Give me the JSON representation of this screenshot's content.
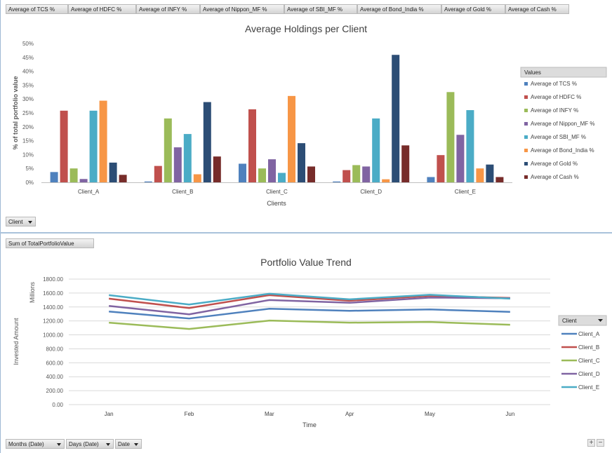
{
  "top_field_buttons": [
    "Average of TCS %",
    "Average of HDFC %",
    "Average of INFY %",
    "Average of Nippon_MF  %",
    "Average of SBI_MF %",
    "Average of Bond_India  %",
    "Average of Gold %",
    "Average of Cash %"
  ],
  "client_filter": {
    "label": "Client"
  },
  "sum_field": {
    "label": "Sum of TotalPortfolioValue"
  },
  "bottom_filters": [
    {
      "label": "Months (Date)"
    },
    {
      "label": "Days (Date)"
    },
    {
      "label": "Date"
    }
  ],
  "zoom": {
    "plus": "+",
    "minus": "−"
  },
  "colors": {
    "tcs": "#4f81bd",
    "hdfc": "#c0504d",
    "infy": "#9bbb59",
    "nippon": "#8064a2",
    "sbi": "#4bacc6",
    "bond": "#f79646",
    "gold": "#2c4d75",
    "cash": "#772c2a",
    "client_a": "#4f81bd",
    "client_b": "#c0504d",
    "client_c": "#9bbb59",
    "client_d": "#8064a2",
    "client_e": "#4bacc6",
    "gridline": "#d9d9d9",
    "axis_text": "#595959"
  },
  "chart_data": [
    {
      "type": "bar",
      "title": "Average Holdings per Client",
      "xlabel": "Clients",
      "ylabel": "% of total portfolio value",
      "ylim": [
        0,
        50
      ],
      "yticks": [
        "0%",
        "5%",
        "10%",
        "15%",
        "20%",
        "25%",
        "30%",
        "35%",
        "40%",
        "45%",
        "50%"
      ],
      "categories": [
        "Client_A",
        "Client_B",
        "Client_C",
        "Client_D",
        "Client_E"
      ],
      "legend_title": "Values",
      "legend_position": "right",
      "grid": false,
      "series": [
        {
          "name": "Average of TCS %",
          "values": [
            3.7,
            0.3,
            6.7,
            0.3,
            1.9
          ]
        },
        {
          "name": "Average of HDFC %",
          "values": [
            25.8,
            5.9,
            26.3,
            4.4,
            9.8
          ]
        },
        {
          "name": "Average of INFY %",
          "values": [
            5.0,
            23.0,
            5.0,
            6.2,
            32.5
          ]
        },
        {
          "name": "Average of Nippon_MF %",
          "values": [
            1.2,
            12.6,
            8.3,
            5.7,
            17.1
          ]
        },
        {
          "name": "Average of SBI_MF %",
          "values": [
            25.8,
            17.4,
            3.4,
            23.0,
            26.0
          ]
        },
        {
          "name": "Average of Bond_India %",
          "values": [
            29.4,
            2.9,
            31.1,
            1.1,
            5.0
          ]
        },
        {
          "name": "Average of Gold %",
          "values": [
            7.1,
            28.9,
            14.1,
            45.9,
            6.4
          ]
        },
        {
          "name": "Average of Cash %",
          "values": [
            2.7,
            9.3,
            5.7,
            13.3,
            1.9
          ]
        }
      ]
    },
    {
      "type": "line",
      "title": "Portfolio Value Trend",
      "xlabel": "Time",
      "ylabel": "Invested Amount",
      "units_label": "Millions",
      "ylim": [
        0,
        1800
      ],
      "yticks": [
        "0.00",
        "200.00",
        "400.00",
        "600.00",
        "800.00",
        "1000.00",
        "1200.00",
        "1400.00",
        "1600.00",
        "1800.00"
      ],
      "categories": [
        "Jan",
        "Feb",
        "Mar",
        "Apr",
        "May",
        "Jun"
      ],
      "legend_title": "Client",
      "legend_position": "right",
      "grid": true,
      "series": [
        {
          "name": "Client_A",
          "values": [
            1335,
            1235,
            1375,
            1345,
            1365,
            1330
          ]
        },
        {
          "name": "Client_B",
          "values": [
            1520,
            1385,
            1570,
            1490,
            1560,
            1530
          ]
        },
        {
          "name": "Client_C",
          "values": [
            1175,
            1085,
            1205,
            1175,
            1185,
            1145
          ]
        },
        {
          "name": "Client_D",
          "values": [
            1415,
            1295,
            1500,
            1460,
            1535,
            1525
          ]
        },
        {
          "name": "Client_E",
          "values": [
            1570,
            1435,
            1590,
            1510,
            1575,
            1520
          ]
        }
      ]
    }
  ]
}
